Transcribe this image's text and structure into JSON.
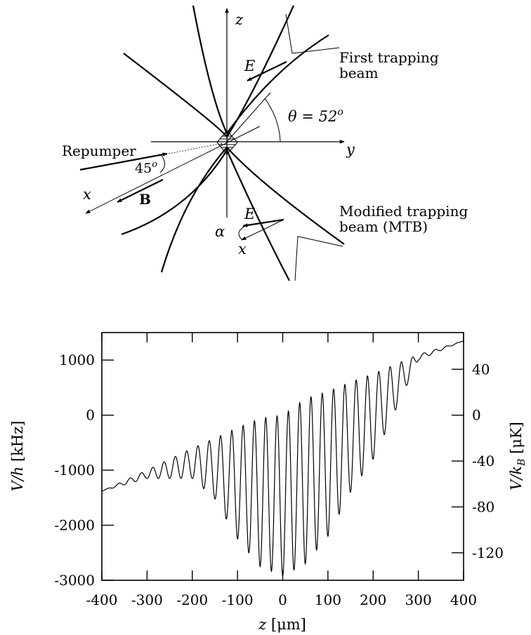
{
  "diagram": {
    "axis_z": "z",
    "axis_y": "y",
    "axis_x": "x",
    "axis_x2": "x",
    "field_e_top": "E",
    "field_e_bottom": "E",
    "field_b": "B",
    "theta_label": "θ = 52",
    "theta_sup": "o",
    "angle_45": "45",
    "angle_45_sup": "o",
    "alpha": "α",
    "repumper": "Repumper",
    "first_beam_line1": "First trapping",
    "first_beam_line2": "beam",
    "mtb_line1": "Modified trapping",
    "mtb_line2": "beam (MTB)"
  },
  "chart_data": {
    "type": "line",
    "xlabel": "z [μm]",
    "ylabel": "V/h [kHz]",
    "y2label": "V/k_B [μK]",
    "xlim": [
      -400,
      400
    ],
    "ylim": [
      -3000,
      1500
    ],
    "y2lim": [
      -144,
      72
    ],
    "xticks": [
      -400,
      -300,
      -200,
      -100,
      0,
      100,
      200,
      300,
      400
    ],
    "xtick_labels": [
      "-400",
      "-300",
      "-200",
      "-100",
      "0",
      "100",
      "200",
      "300",
      "400"
    ],
    "yticks": [
      1000,
      0,
      -1000,
      -2000,
      -3000
    ],
    "ytick_labels": [
      "1000",
      "0",
      "-1000",
      "-2000",
      "-3000"
    ],
    "y2ticks": [
      40,
      0,
      -40,
      -80,
      -120
    ],
    "y2tick_labels": [
      "40",
      "0",
      "-40",
      "-80",
      "-120"
    ],
    "series": [
      {
        "description": "linear gradient plus standing-wave modulation under a Gaussian envelope",
        "x": [
          -400,
          -300,
          -200,
          -150,
          -100,
          -50,
          0,
          50,
          100,
          150,
          200,
          300,
          400
        ],
        "baseline": [
          -1380,
          -1040,
          -700,
          -530,
          -360,
          -190,
          0,
          160,
          330,
          500,
          670,
          1010,
          1350
        ],
        "minima": [
          -1380,
          -1150,
          -1150,
          -1520,
          -2250,
          -2750,
          -2920,
          -2700,
          -2200,
          -1400,
          -800,
          1000,
          1350
        ],
        "maxima": [
          -1380,
          -1000,
          -600,
          -420,
          -230,
          -60,
          0,
          300,
          430,
          600,
          750,
          1100,
          1350
        ],
        "period": 25
      }
    ]
  }
}
